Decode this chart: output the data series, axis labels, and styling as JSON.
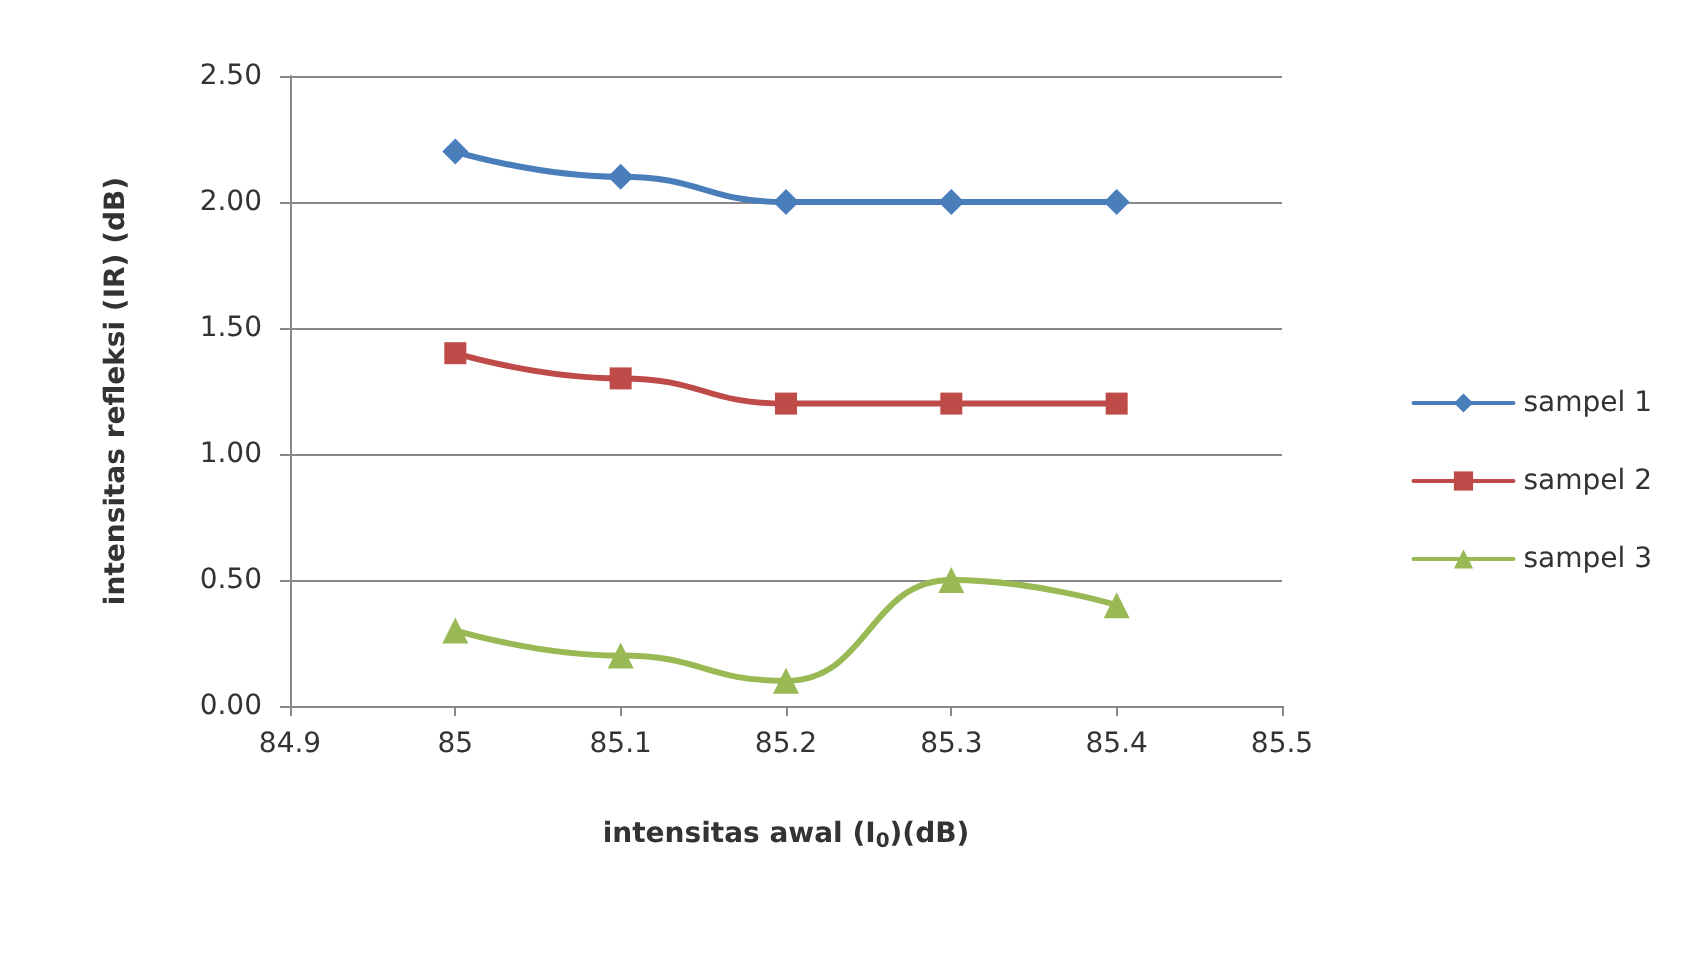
{
  "chart_data": {
    "type": "line",
    "xlabel": "intensitas awal (I$_{0}$)(dB)",
    "ylabel": "intensitas refleksi (IR) (dB)",
    "x": [
      85,
      85.1,
      85.2,
      85.3,
      85.4
    ],
    "series": [
      {
        "name": "sampel 1",
        "color": "#4a7ebb",
        "marker": "diamond",
        "values": [
          2.2,
          2.1,
          2.0,
          2.0,
          2.0
        ]
      },
      {
        "name": "sampel 2",
        "color": "#be4b48",
        "marker": "square",
        "values": [
          1.4,
          1.3,
          1.2,
          1.2,
          1.2
        ]
      },
      {
        "name": "sampel 3",
        "color": "#98b954",
        "marker": "triangle",
        "values": [
          0.3,
          0.2,
          0.1,
          0.5,
          0.4
        ]
      }
    ],
    "xlim": [
      84.9,
      85.5
    ],
    "xticks": [
      84.9,
      85,
      85.1,
      85.2,
      85.3,
      85.4,
      85.5
    ],
    "ylim": [
      0,
      2.5
    ],
    "yticks": [
      {
        "value": 0,
        "label": "0.00"
      },
      {
        "value": 0.5,
        "label": "0.50"
      },
      {
        "value": 1,
        "label": "1.00"
      },
      {
        "value": 1.5,
        "label": "1.50"
      },
      {
        "value": 2,
        "label": "2.00"
      },
      {
        "value": 2.5,
        "label": "2.50"
      }
    ],
    "grid": "y",
    "legend": "right",
    "line_style": "solid"
  }
}
